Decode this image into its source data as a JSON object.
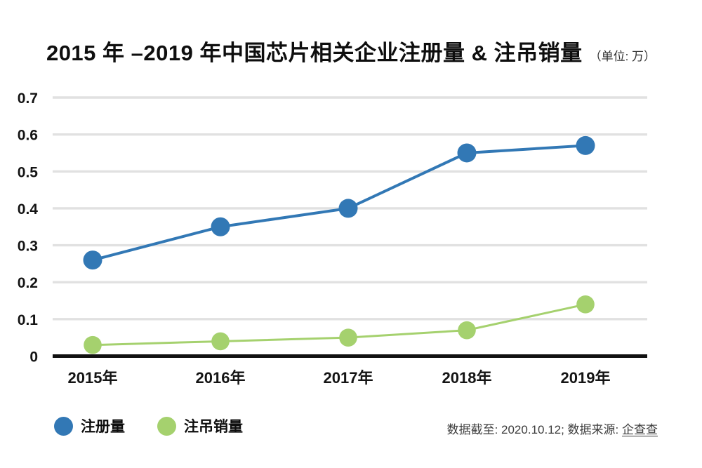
{
  "title": {
    "text": "2015 年 –2019 年中国芯片相关企业注册量 & 注吊销量",
    "unit": "（单位: 万）"
  },
  "chart_data": {
    "type": "line",
    "categories": [
      "2015年",
      "2016年",
      "2017年",
      "2018年",
      "2019年"
    ],
    "series": [
      {
        "name": "注册量",
        "color": "#3278b5",
        "values": [
          0.26,
          0.35,
          0.4,
          0.55,
          0.57
        ]
      },
      {
        "name": "注吊销量",
        "color": "#a5d16e",
        "values": [
          0.03,
          0.04,
          0.05,
          0.07,
          0.14
        ]
      }
    ],
    "title": "2015 年 –2019 年中国芯片相关企业注册量 & 注吊销量",
    "unit_label": "（单位: 万）",
    "xlabel": "",
    "ylabel": "",
    "ylim": [
      0,
      0.7
    ],
    "yticks": [
      0,
      0.1,
      0.2,
      0.3,
      0.4,
      0.5,
      0.6,
      0.7
    ],
    "ytick_labels": [
      "0",
      "0.1",
      "0.2",
      "0.3",
      "0.4",
      "0.5",
      "0.6",
      "0.7"
    ],
    "grid": true,
    "gridline_color": "#e1e1e1",
    "baseline_color": "#111111",
    "legend_position": "bottom-left"
  },
  "footer": {
    "note": "数据截至: 2020.10.12; 数据来源: ",
    "source": "企查查"
  }
}
